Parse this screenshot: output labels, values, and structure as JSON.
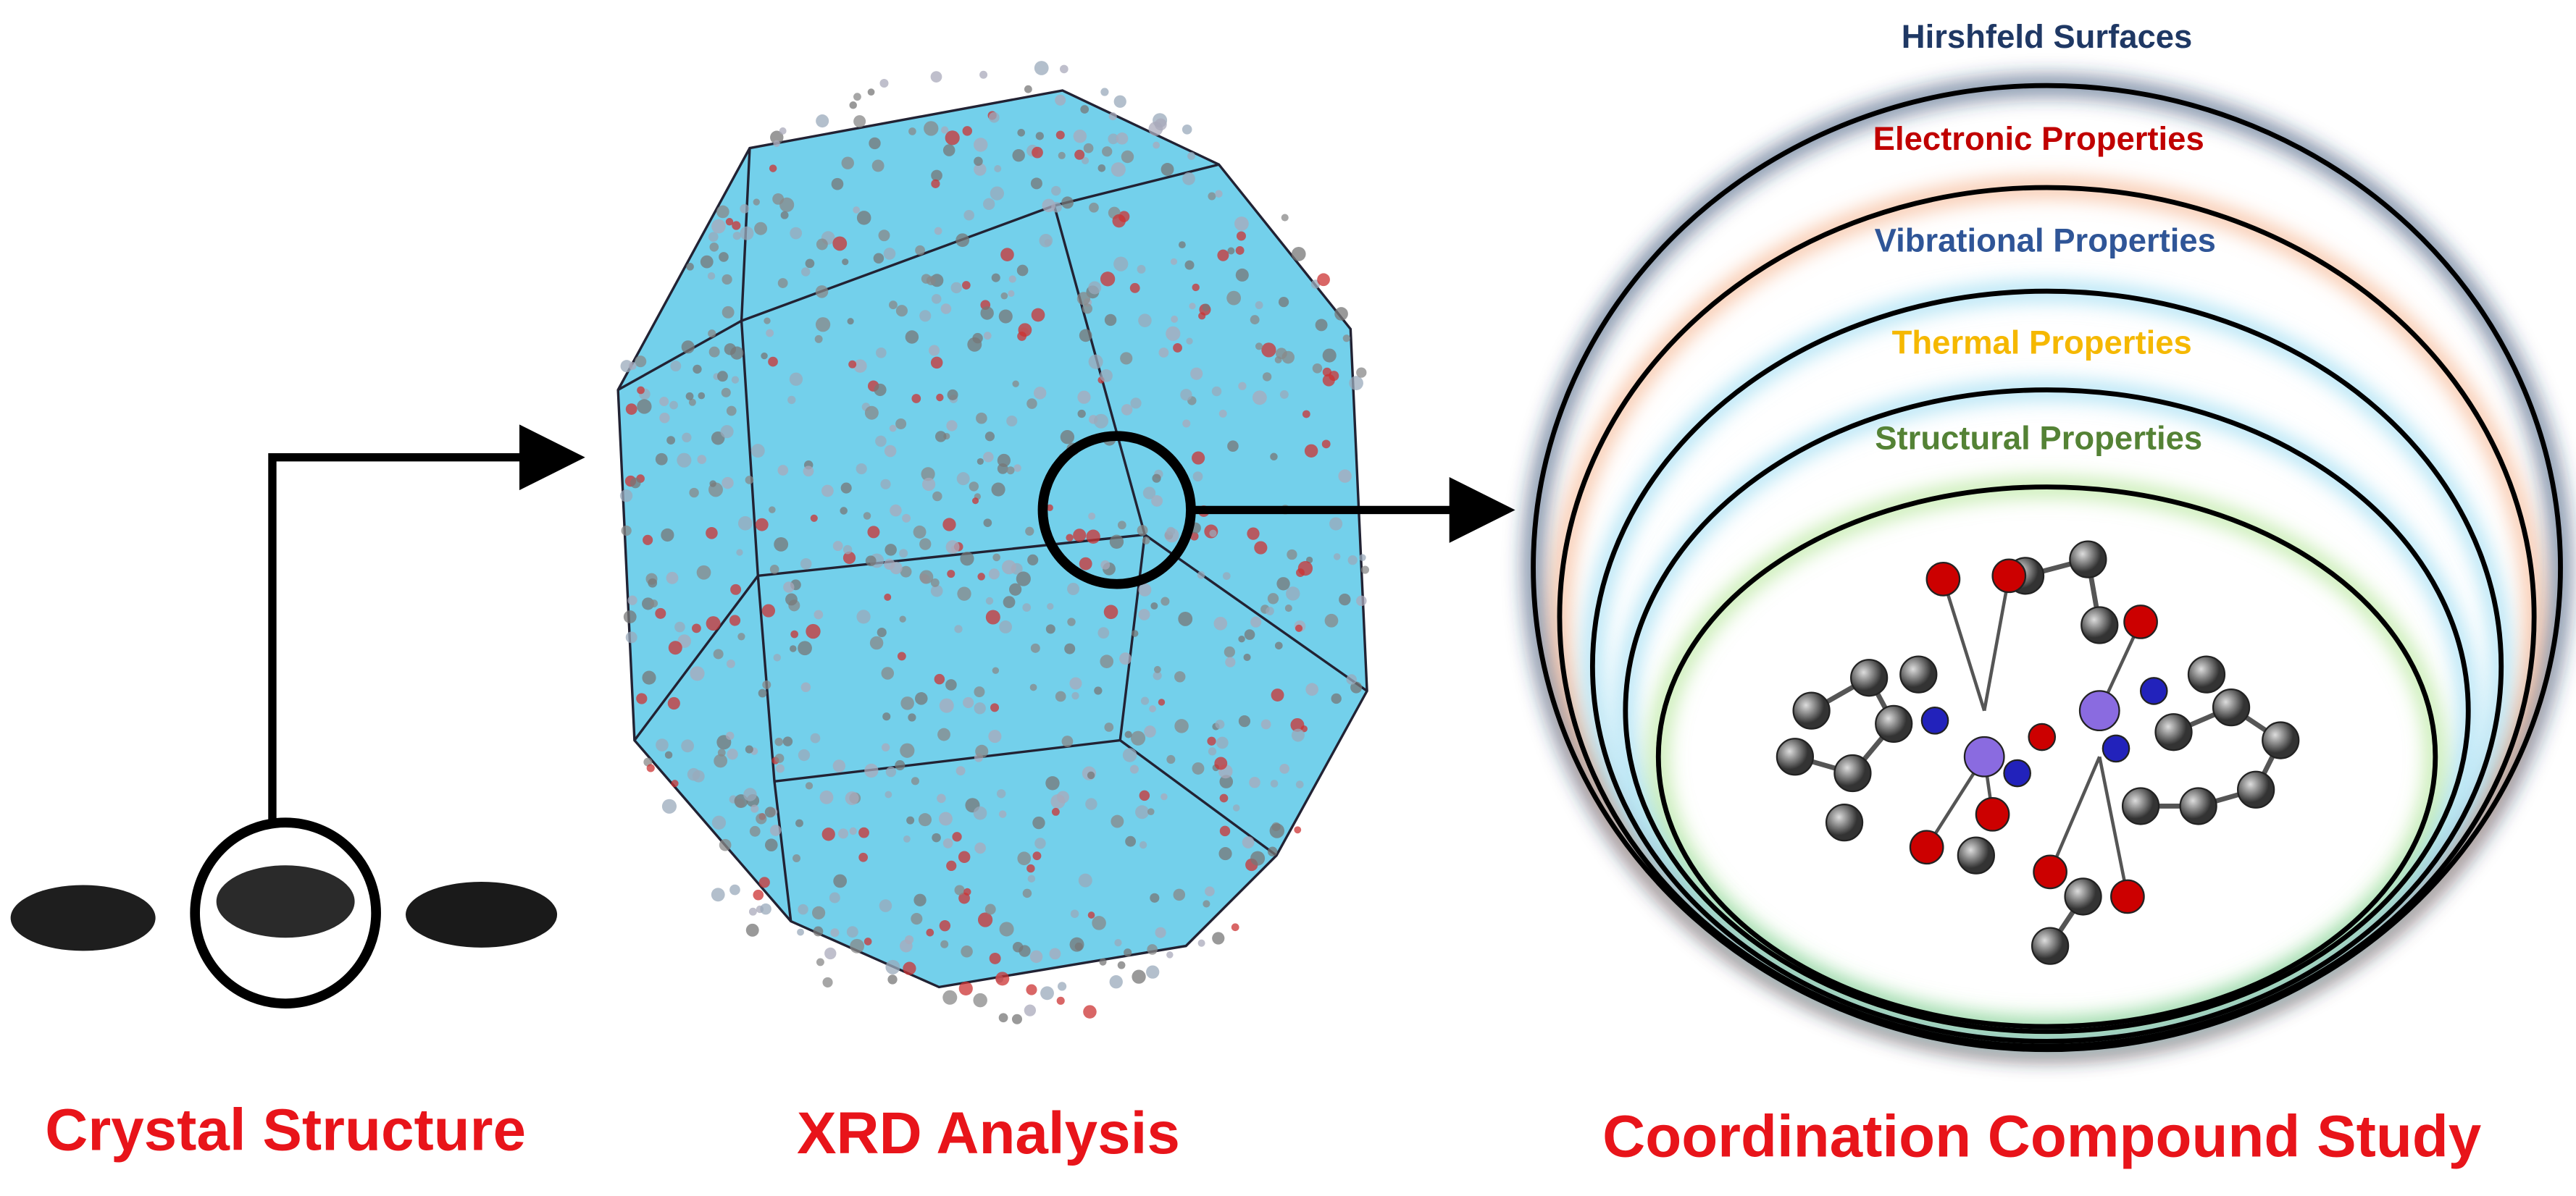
{
  "labels": {
    "crystal": "Crystal Structure",
    "xrd": "XRD Analysis",
    "study": "Coordination Compound Study"
  },
  "rings": [
    {
      "label": "Hirshfeld Surfaces"
    },
    {
      "label": "Electronic Properties"
    },
    {
      "label": "Vibrational Properties"
    },
    {
      "label": "Thermal Properties"
    },
    {
      "label": "Structural Properties"
    }
  ]
}
